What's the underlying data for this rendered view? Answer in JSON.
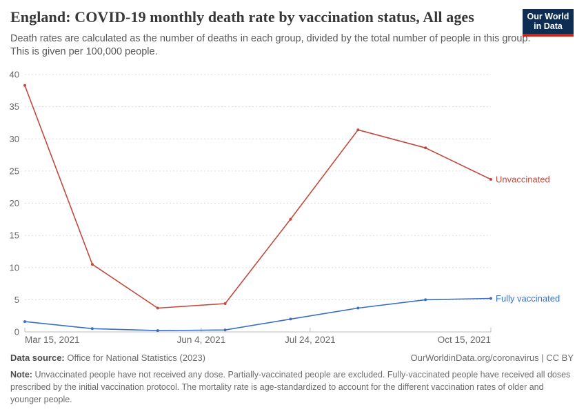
{
  "header": {
    "title": "England: COVID-19 monthly death rate by vaccination status, All ages",
    "subtitle": "Death rates are calculated as the number of deaths in each group, divided by the total number of people in this group. This is given per 100,000 people.",
    "logo": {
      "line1": "Our World",
      "line2": "in Data",
      "bg_color": "#0d2d52",
      "stripe_color": "#cf2318"
    }
  },
  "chart_data": {
    "type": "line",
    "title": "England: COVID-19 monthly death rate by vaccination status, All ages",
    "x_days_since_first": [
      0,
      31,
      61,
      92,
      122,
      153,
      184,
      214
    ],
    "series": [
      {
        "name": "Unvaccinated",
        "color": "#bf4a3d",
        "values": [
          38.3,
          10.5,
          3.7,
          4.4,
          17.5,
          31.4,
          28.6,
          23.7
        ]
      },
      {
        "name": "Fully vaccinated",
        "color": "#3a6ec5",
        "values": [
          1.6,
          0.5,
          0.2,
          0.3,
          2.0,
          3.7,
          5.0,
          5.2
        ]
      }
    ],
    "x_ticks": [
      {
        "day": 0,
        "label": "Mar 15, 2021",
        "align": "start"
      },
      {
        "day": 81,
        "label": "Jun 4, 2021",
        "align": "middle"
      },
      {
        "day": 131,
        "label": "Jul 24, 2021",
        "align": "middle"
      },
      {
        "day": 214,
        "label": "Oct 15, 2021",
        "align": "end"
      }
    ],
    "y_ticks": [
      0,
      5,
      10,
      15,
      20,
      25,
      30,
      35,
      40
    ],
    "ylim": [
      0,
      40
    ],
    "xlim_days": [
      0,
      214
    ],
    "grid": "horizontal-dashed",
    "legend_position": "end-of-line-labels",
    "ylabel": "",
    "xlabel": ""
  },
  "footer": {
    "data_source_label": "Data source:",
    "data_source": "Office for National Statistics (2023)",
    "attribution": "OurWorldinData.org/coronavirus | CC BY",
    "note_label": "Note:",
    "note": "Unvaccinated people have not received any dose. Partially-vaccinated people are excluded. Fully-vaccinated people have received all doses prescribed by the initial vaccination protocol. The mortality rate is age-standardized to account for the different vaccination rates of older and younger people."
  },
  "colors": {
    "title_text": "#383838",
    "body_text": "#595959",
    "axis_text": "#666666",
    "gridline": "#dcdcdc",
    "axis_line": "#bbbbbb",
    "unvaccinated": "#bf4a3d",
    "fully_vaccinated": "#3a6ec5"
  }
}
